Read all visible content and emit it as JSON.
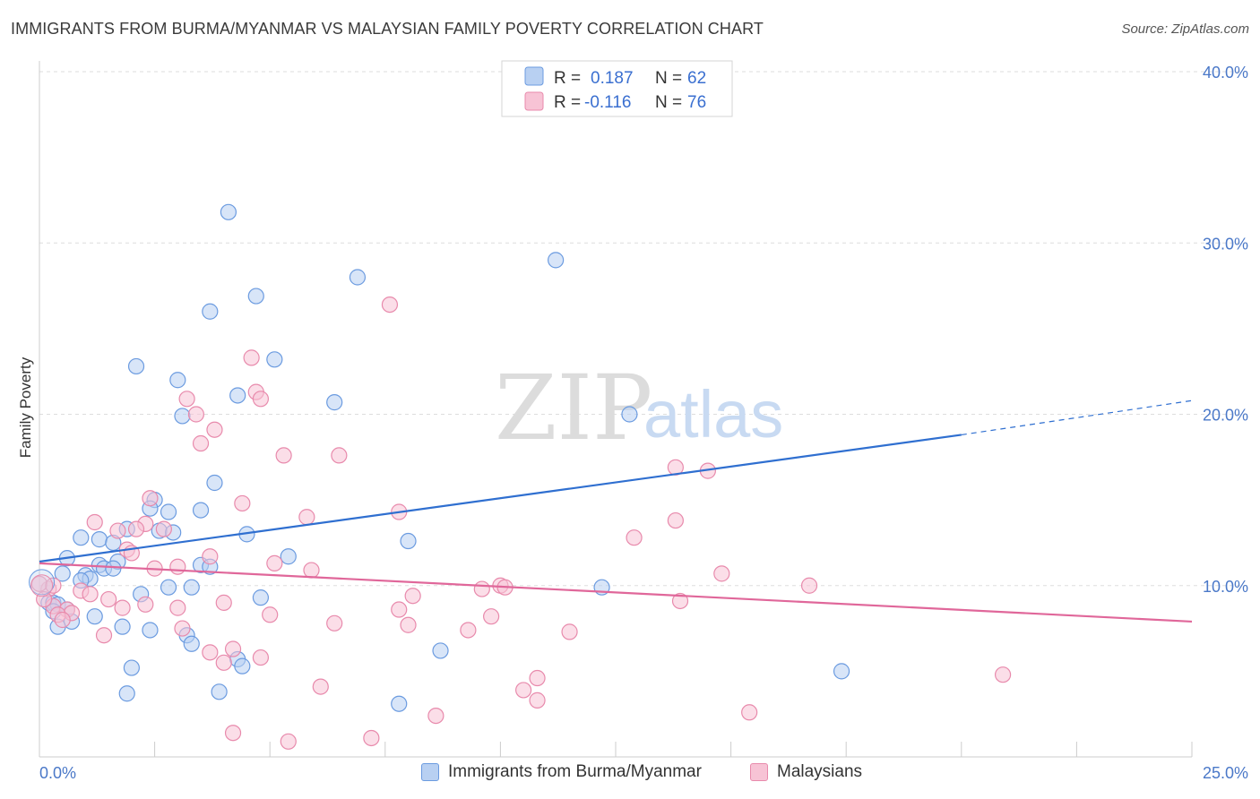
{
  "title": "IMMIGRANTS FROM BURMA/MYANMAR VS MALAYSIAN FAMILY POVERTY CORRELATION CHART",
  "source": "Source: ZipAtlas.com",
  "watermark": {
    "part1": "ZIP",
    "part2": "atlas"
  },
  "legend": {
    "rows": [
      {
        "r_label": "R =",
        "r_value": "0.187",
        "n_label": "N =",
        "n_value": "62"
      },
      {
        "r_label": "R =",
        "r_value": "-0.116",
        "n_label": "N =",
        "n_value": "76"
      }
    ]
  },
  "bottom_legend": {
    "series1": "Immigrants from Burma/Myanmar",
    "series2": "Malaysians"
  },
  "colors": {
    "blue_fill": "#b8d0f2",
    "blue_stroke": "#6b9be0",
    "blue_line": "#2f6fd0",
    "pink_fill": "#f7c3d5",
    "pink_stroke": "#e88aac",
    "pink_line": "#e0679a",
    "grid": "#dddddd",
    "tick_label": "#4a78c8"
  },
  "chart_data": {
    "type": "scatter",
    "title": "IMMIGRANTS FROM BURMA/MYANMAR VS MALAYSIAN FAMILY POVERTY CORRELATION CHART",
    "xlabel": "",
    "ylabel": "Family Poverty",
    "xlim": [
      0,
      25
    ],
    "ylim": [
      0,
      40
    ],
    "x_tick_labels": [
      "0.0%",
      "25.0%"
    ],
    "y_ticks": [
      10,
      20,
      30,
      40
    ],
    "y_tick_labels": [
      "10.0%",
      "20.0%",
      "30.0%",
      "40.0%"
    ],
    "grid": "horizontal dashed",
    "legend_position": "top-center",
    "series": [
      {
        "name": "Immigrants from Burma/Myanmar",
        "r": 0.187,
        "n": 62,
        "trend": {
          "x": [
            0,
            20
          ],
          "y": [
            11.4,
            18.8
          ],
          "dashed_to": [
            25,
            20.8
          ]
        },
        "points": [
          [
            4.1,
            31.8
          ],
          [
            11.2,
            29.0
          ],
          [
            6.9,
            28.0
          ],
          [
            4.7,
            26.9
          ],
          [
            3.7,
            26.0
          ],
          [
            5.1,
            23.2
          ],
          [
            2.1,
            22.8
          ],
          [
            3.0,
            22.0
          ],
          [
            4.3,
            21.1
          ],
          [
            6.4,
            20.7
          ],
          [
            3.1,
            19.9
          ],
          [
            12.8,
            20.0
          ],
          [
            3.8,
            16.0
          ],
          [
            2.5,
            15.0
          ],
          [
            3.5,
            14.4
          ],
          [
            2.8,
            14.3
          ],
          [
            2.4,
            14.5
          ],
          [
            1.9,
            13.3
          ],
          [
            2.6,
            13.2
          ],
          [
            2.9,
            13.1
          ],
          [
            4.5,
            13.0
          ],
          [
            0.9,
            12.8
          ],
          [
            1.3,
            12.7
          ],
          [
            1.6,
            12.5
          ],
          [
            8.0,
            12.6
          ],
          [
            5.4,
            11.7
          ],
          [
            0.6,
            11.6
          ],
          [
            1.7,
            11.4
          ],
          [
            1.3,
            11.2
          ],
          [
            3.5,
            11.2
          ],
          [
            3.7,
            11.1
          ],
          [
            1.4,
            11.0
          ],
          [
            1.6,
            11.0
          ],
          [
            0.5,
            10.7
          ],
          [
            1.0,
            10.6
          ],
          [
            1.1,
            10.4
          ],
          [
            0.9,
            10.3
          ],
          [
            2.8,
            9.9
          ],
          [
            3.3,
            9.9
          ],
          [
            12.2,
            9.9
          ],
          [
            2.2,
            9.5
          ],
          [
            4.8,
            9.3
          ],
          [
            0.2,
            9.0
          ],
          [
            0.3,
            9.0
          ],
          [
            0.4,
            8.9
          ],
          [
            0.6,
            8.6
          ],
          [
            0.3,
            8.5
          ],
          [
            1.2,
            8.2
          ],
          [
            0.7,
            7.9
          ],
          [
            0.4,
            7.6
          ],
          [
            1.8,
            7.6
          ],
          [
            2.4,
            7.4
          ],
          [
            3.2,
            7.1
          ],
          [
            3.3,
            6.6
          ],
          [
            8.7,
            6.2
          ],
          [
            4.3,
            5.7
          ],
          [
            4.4,
            5.3
          ],
          [
            2.0,
            5.2
          ],
          [
            17.4,
            5.0
          ],
          [
            1.9,
            3.7
          ],
          [
            3.9,
            3.8
          ],
          [
            7.8,
            3.1
          ]
        ]
      },
      {
        "name": "Malaysians",
        "r": -0.116,
        "n": 76,
        "trend": {
          "x": [
            0,
            25
          ],
          "y": [
            11.3,
            7.9
          ]
        },
        "points": [
          [
            7.6,
            26.4
          ],
          [
            4.6,
            23.3
          ],
          [
            4.7,
            21.3
          ],
          [
            3.2,
            20.9
          ],
          [
            4.8,
            20.9
          ],
          [
            3.4,
            20.0
          ],
          [
            3.8,
            19.1
          ],
          [
            3.5,
            18.3
          ],
          [
            5.3,
            17.6
          ],
          [
            6.5,
            17.6
          ],
          [
            13.8,
            16.9
          ],
          [
            14.5,
            16.7
          ],
          [
            4.4,
            14.8
          ],
          [
            2.4,
            15.1
          ],
          [
            7.8,
            14.3
          ],
          [
            5.8,
            14.0
          ],
          [
            13.8,
            13.8
          ],
          [
            1.2,
            13.7
          ],
          [
            2.3,
            13.6
          ],
          [
            1.7,
            13.2
          ],
          [
            2.1,
            13.3
          ],
          [
            2.7,
            13.3
          ],
          [
            12.9,
            12.8
          ],
          [
            1.9,
            12.1
          ],
          [
            2.0,
            11.9
          ],
          [
            3.7,
            11.7
          ],
          [
            5.1,
            11.3
          ],
          [
            3.0,
            11.1
          ],
          [
            2.5,
            11.0
          ],
          [
            5.9,
            10.9
          ],
          [
            14.8,
            10.7
          ],
          [
            16.7,
            10.0
          ],
          [
            9.6,
            9.8
          ],
          [
            10.0,
            10.0
          ],
          [
            10.1,
            9.9
          ],
          [
            0.2,
            9.8
          ],
          [
            0.9,
            9.7
          ],
          [
            1.1,
            9.5
          ],
          [
            1.5,
            9.2
          ],
          [
            8.1,
            9.4
          ],
          [
            13.9,
            9.1
          ],
          [
            4.0,
            9.0
          ],
          [
            2.3,
            8.9
          ],
          [
            0.3,
            8.8
          ],
          [
            0.6,
            8.6
          ],
          [
            0.7,
            8.4
          ],
          [
            1.8,
            8.7
          ],
          [
            3.0,
            8.7
          ],
          [
            5.0,
            8.3
          ],
          [
            7.8,
            8.6
          ],
          [
            9.8,
            8.2
          ],
          [
            0.4,
            8.3
          ],
          [
            0.5,
            8.0
          ],
          [
            6.4,
            7.8
          ],
          [
            8.0,
            7.7
          ],
          [
            9.3,
            7.4
          ],
          [
            3.1,
            7.5
          ],
          [
            11.5,
            7.3
          ],
          [
            1.4,
            7.1
          ],
          [
            3.7,
            6.1
          ],
          [
            4.2,
            6.3
          ],
          [
            4.8,
            5.8
          ],
          [
            4.0,
            5.5
          ],
          [
            10.8,
            4.6
          ],
          [
            6.1,
            4.1
          ],
          [
            10.5,
            3.9
          ],
          [
            20.9,
            4.8
          ],
          [
            10.8,
            3.3
          ],
          [
            8.6,
            2.4
          ],
          [
            15.4,
            2.6
          ],
          [
            4.2,
            1.4
          ],
          [
            5.4,
            0.9
          ],
          [
            7.2,
            1.1
          ],
          [
            0.0,
            10.1
          ],
          [
            0.1,
            9.2
          ],
          [
            0.3,
            10.0
          ]
        ]
      }
    ]
  }
}
